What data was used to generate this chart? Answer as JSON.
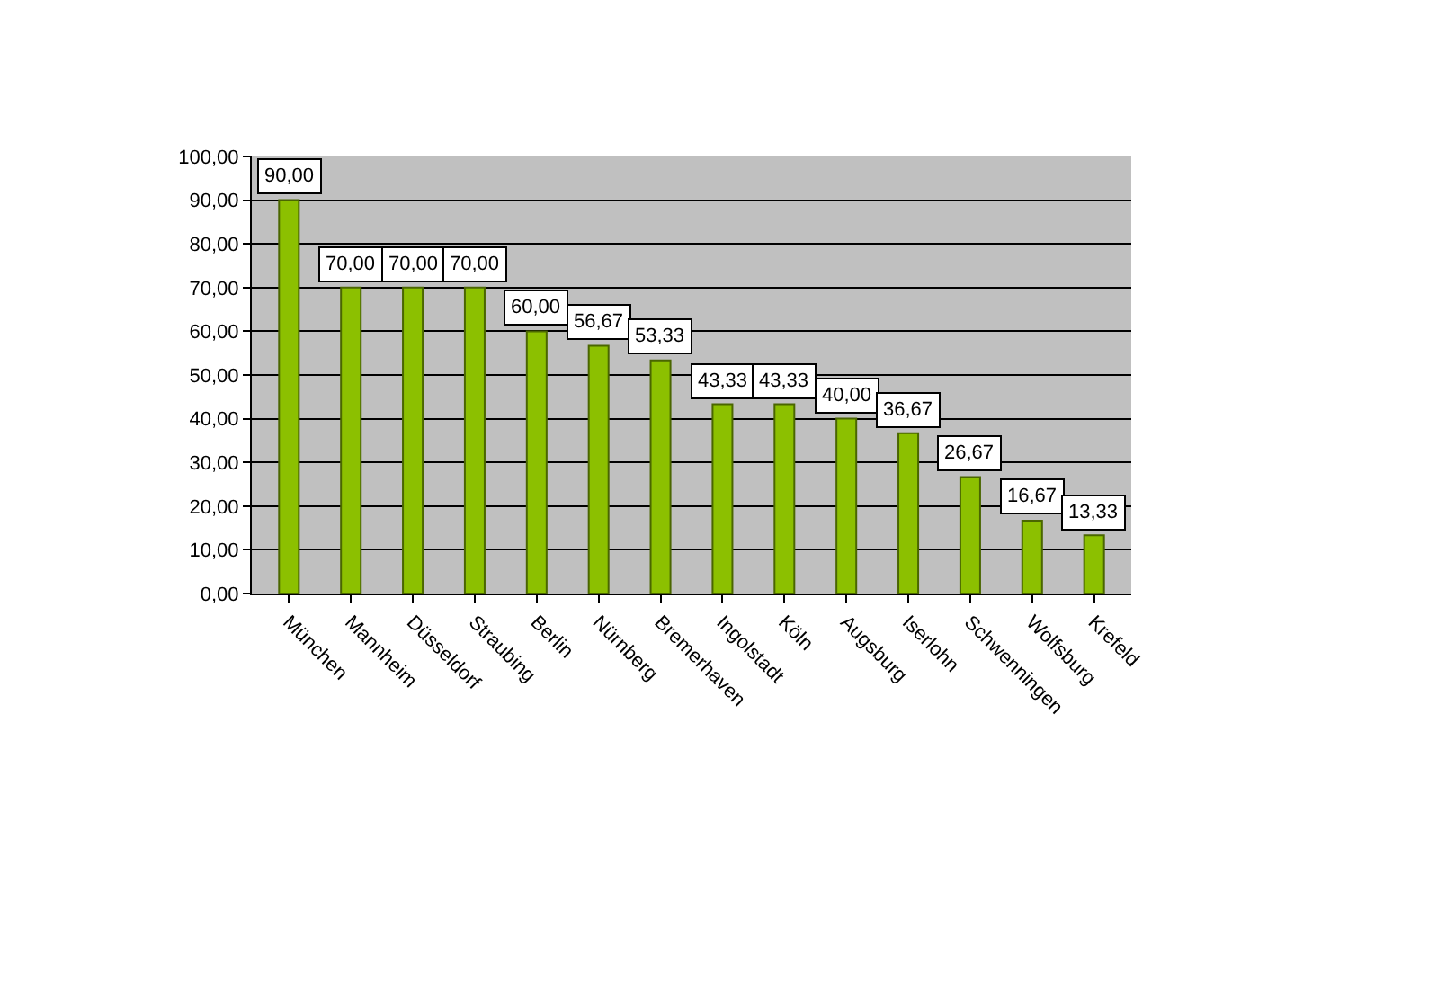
{
  "chart_data": {
    "type": "bar",
    "categories": [
      "München",
      "Mannheim",
      "Düsseldorf",
      "Straubing",
      "Berlin",
      "Nürnberg",
      "Bremerhaven",
      "Ingolstadt",
      "Köln",
      "Augsburg",
      "Iserlohn",
      "Schwenningen",
      "Wolfsburg",
      "Krefeld"
    ],
    "values": [
      90,
      70,
      70,
      70,
      60,
      56.67,
      53.33,
      43.33,
      43.33,
      40,
      36.67,
      26.67,
      16.67,
      13.33
    ],
    "value_labels": [
      "90,00",
      "70,00",
      "70,00",
      "70,00",
      "60,00",
      "56,67",
      "53,33",
      "43,33",
      "43,33",
      "40,00",
      "36,67",
      "26,67",
      "16,67",
      "13,33"
    ],
    "color": "#8cc000",
    "ylim": [
      0,
      100
    ],
    "yticks": [
      {
        "value": 0,
        "label": "0,00"
      },
      {
        "value": 10,
        "label": "10,00"
      },
      {
        "value": 20,
        "label": "20,00"
      },
      {
        "value": 30,
        "label": "30,00"
      },
      {
        "value": 40,
        "label": "40,00"
      },
      {
        "value": 50,
        "label": "50,00"
      },
      {
        "value": 60,
        "label": "60,00"
      },
      {
        "value": 70,
        "label": "70,00"
      },
      {
        "value": 80,
        "label": "80,00"
      },
      {
        "value": 90,
        "label": "90,00"
      },
      {
        "value": 100,
        "label": "100,00"
      }
    ],
    "grid": "y",
    "legend": false
  }
}
